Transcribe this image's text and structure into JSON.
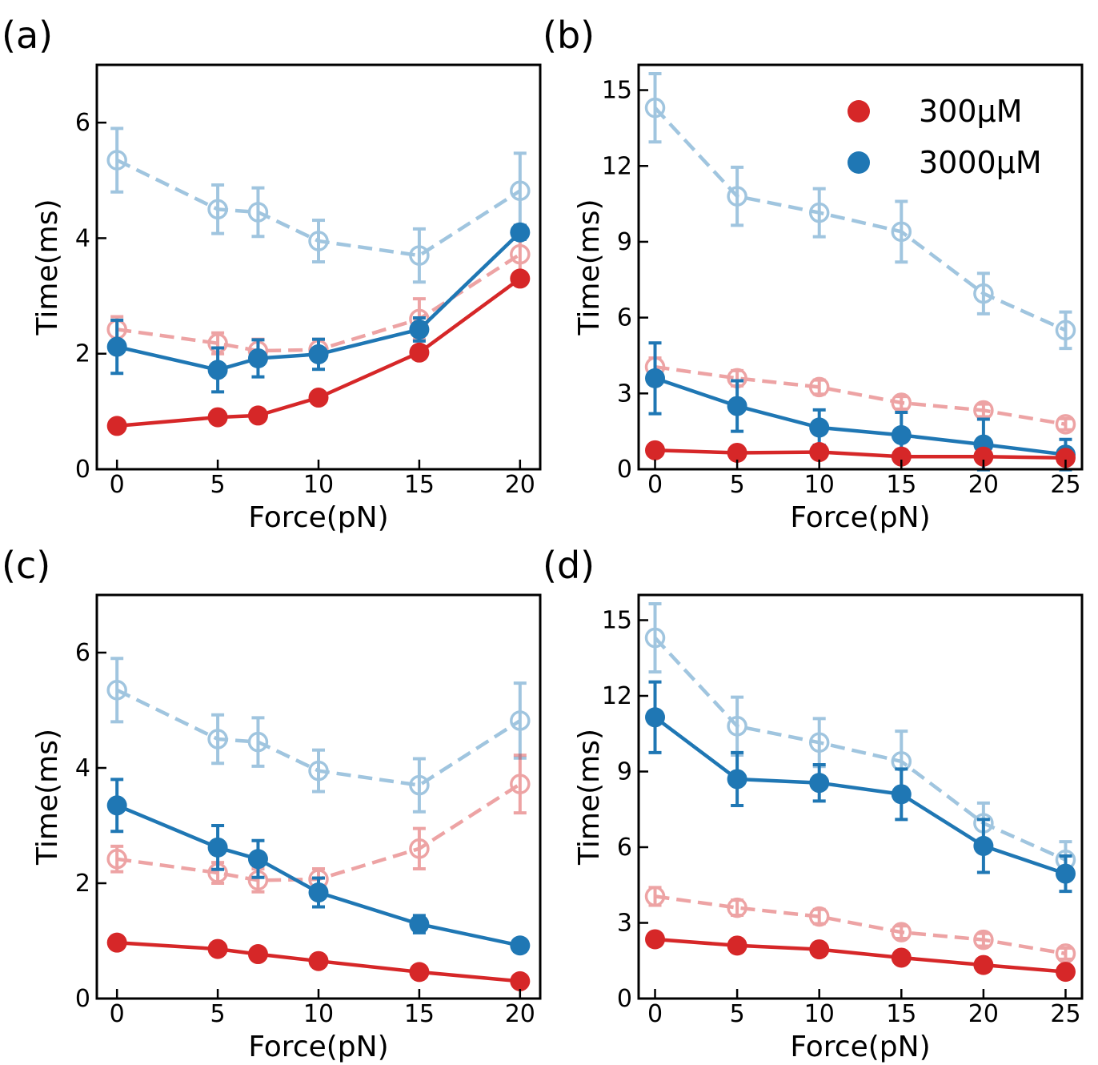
{
  "colors": {
    "red": "#d62728",
    "blue": "#1f77b4"
  },
  "legend": {
    "placement": "top-right",
    "entries": [
      {
        "label": "300µM",
        "color": "#d62728"
      },
      {
        "label": "3000µM",
        "color": "#1f77b4"
      }
    ]
  },
  "chart_data": [
    {
      "type": "line",
      "panel_label": "(a)",
      "xlabel": "Force(pN)",
      "ylabel": "Time(ms)",
      "xlim": [
        -1,
        21
      ],
      "ylim": [
        0,
        7
      ],
      "xticks": [
        0,
        5,
        10,
        15,
        20
      ],
      "yticks": [
        0,
        2,
        4,
        6
      ],
      "series": [
        {
          "color": "#1f77b4",
          "style": "dashed-open",
          "x": [
            0,
            5,
            7,
            10,
            15,
            20
          ],
          "y": [
            5.35,
            4.5,
            4.45,
            3.95,
            3.7,
            4.82
          ],
          "err": [
            0.55,
            0.42,
            0.42,
            0.36,
            0.46,
            0.65
          ]
        },
        {
          "color": "#d62728",
          "style": "dashed-open",
          "x": [
            0,
            5,
            7,
            10,
            15,
            20
          ],
          "y": [
            2.42,
            2.18,
            2.05,
            2.07,
            2.6,
            3.72
          ],
          "err": [
            0.22,
            0.18,
            0.2,
            0.18,
            0.35,
            0.5
          ]
        },
        {
          "color": "#1f77b4",
          "style": "solid-filled",
          "x": [
            0,
            5,
            7,
            10,
            15,
            20
          ],
          "y": [
            2.12,
            1.72,
            1.92,
            1.99,
            2.42,
            4.1
          ],
          "err": [
            0.46,
            0.38,
            0.32,
            0.26,
            0.2,
            0.12
          ]
        },
        {
          "color": "#d62728",
          "style": "solid-filled",
          "x": [
            0,
            5,
            7,
            10,
            15,
            20
          ],
          "y": [
            0.75,
            0.9,
            0.93,
            1.24,
            2.02,
            3.3
          ],
          "err": [
            0.04,
            0.05,
            0.05,
            0.06,
            0.08,
            0.1
          ]
        }
      ]
    },
    {
      "type": "line",
      "panel_label": "(b)",
      "xlabel": "Force(pN)",
      "ylabel": "Time(ms)",
      "xlim": [
        -1,
        26
      ],
      "ylim": [
        0,
        16
      ],
      "xticks": [
        0,
        5,
        10,
        15,
        20,
        25
      ],
      "yticks": [
        0,
        3,
        6,
        9,
        12,
        15
      ],
      "series": [
        {
          "color": "#1f77b4",
          "style": "dashed-open",
          "x": [
            0,
            5,
            10,
            15,
            20,
            25
          ],
          "y": [
            14.3,
            10.8,
            10.15,
            9.4,
            6.95,
            5.5
          ],
          "err": [
            1.35,
            1.15,
            0.95,
            1.2,
            0.8,
            0.72
          ]
        },
        {
          "color": "#d62728",
          "style": "dashed-open",
          "x": [
            0,
            5,
            10,
            15,
            20,
            25
          ],
          "y": [
            4.05,
            3.6,
            3.25,
            2.63,
            2.33,
            1.78
          ],
          "err": [
            0.35,
            0.3,
            0.28,
            0.25,
            0.25,
            0.22
          ]
        },
        {
          "color": "#1f77b4",
          "style": "solid-filled",
          "x": [
            0,
            5,
            10,
            15,
            20,
            25
          ],
          "y": [
            3.6,
            2.5,
            1.65,
            1.35,
            0.98,
            0.58
          ],
          "err": [
            1.4,
            1.0,
            0.7,
            0.9,
            1.0,
            0.6
          ]
        },
        {
          "color": "#d62728",
          "style": "solid-filled",
          "x": [
            0,
            5,
            10,
            15,
            20,
            25
          ],
          "y": [
            0.75,
            0.65,
            0.68,
            0.5,
            0.5,
            0.45
          ],
          "err": [
            0.05,
            0.05,
            0.05,
            0.04,
            0.04,
            0.04
          ]
        }
      ]
    },
    {
      "type": "line",
      "panel_label": "(c)",
      "xlabel": "Force(pN)",
      "ylabel": "Time(ms)",
      "xlim": [
        -1,
        21
      ],
      "ylim": [
        0,
        7
      ],
      "xticks": [
        0,
        5,
        10,
        15,
        20
      ],
      "yticks": [
        0,
        2,
        4,
        6
      ],
      "series": [
        {
          "color": "#1f77b4",
          "style": "dashed-open",
          "x": [
            0,
            5,
            7,
            10,
            15,
            20
          ],
          "y": [
            5.35,
            4.5,
            4.45,
            3.95,
            3.7,
            4.82
          ],
          "err": [
            0.55,
            0.42,
            0.42,
            0.36,
            0.46,
            0.65
          ]
        },
        {
          "color": "#d62728",
          "style": "dashed-open",
          "x": [
            0,
            5,
            7,
            10,
            15,
            20
          ],
          "y": [
            2.42,
            2.18,
            2.05,
            2.07,
            2.6,
            3.72
          ],
          "err": [
            0.22,
            0.18,
            0.2,
            0.18,
            0.35,
            0.5
          ]
        },
        {
          "color": "#1f77b4",
          "style": "solid-filled",
          "x": [
            0,
            5,
            7,
            10,
            15,
            20
          ],
          "y": [
            3.35,
            2.62,
            2.42,
            1.84,
            1.29,
            0.92
          ],
          "err": [
            0.45,
            0.38,
            0.32,
            0.25,
            0.15,
            0.08
          ]
        },
        {
          "color": "#d62728",
          "style": "solid-filled",
          "x": [
            0,
            5,
            7,
            10,
            15,
            20
          ],
          "y": [
            0.97,
            0.86,
            0.77,
            0.65,
            0.46,
            0.3
          ],
          "err": [
            0.05,
            0.05,
            0.05,
            0.05,
            0.04,
            0.04
          ]
        }
      ]
    },
    {
      "type": "line",
      "panel_label": "(d)",
      "xlabel": "Force(pN)",
      "ylabel": "Time(ms)",
      "xlim": [
        -1,
        26
      ],
      "ylim": [
        0,
        16
      ],
      "xticks": [
        0,
        5,
        10,
        15,
        20,
        25
      ],
      "yticks": [
        0,
        3,
        6,
        9,
        12,
        15
      ],
      "series": [
        {
          "color": "#1f77b4",
          "style": "dashed-open",
          "x": [
            0,
            5,
            10,
            15,
            20,
            25
          ],
          "y": [
            14.3,
            10.8,
            10.15,
            9.4,
            6.95,
            5.5
          ],
          "err": [
            1.35,
            1.15,
            0.95,
            1.2,
            0.8,
            0.72
          ]
        },
        {
          "color": "#d62728",
          "style": "dashed-open",
          "x": [
            0,
            5,
            10,
            15,
            20,
            25
          ],
          "y": [
            4.05,
            3.6,
            3.25,
            2.63,
            2.33,
            1.78
          ],
          "err": [
            0.35,
            0.3,
            0.28,
            0.25,
            0.25,
            0.22
          ]
        },
        {
          "color": "#1f77b4",
          "style": "solid-filled",
          "x": [
            0,
            5,
            10,
            15,
            20,
            25
          ],
          "y": [
            11.15,
            8.7,
            8.55,
            8.1,
            6.05,
            4.95
          ],
          "err": [
            1.4,
            1.05,
            0.72,
            1.0,
            1.05,
            0.7
          ]
        },
        {
          "color": "#d62728",
          "style": "solid-filled",
          "x": [
            0,
            5,
            10,
            15,
            20,
            25
          ],
          "y": [
            2.35,
            2.1,
            1.95,
            1.62,
            1.33,
            1.06
          ],
          "err": [
            0.1,
            0.1,
            0.1,
            0.1,
            0.1,
            0.1
          ]
        }
      ]
    }
  ]
}
